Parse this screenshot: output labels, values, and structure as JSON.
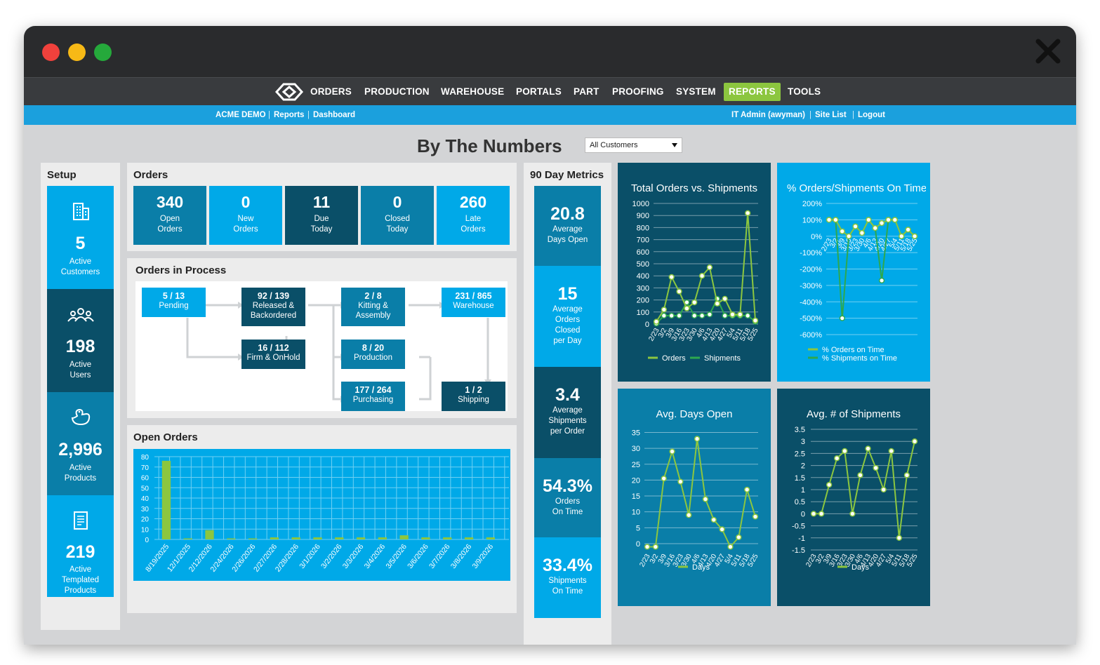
{
  "nav": {
    "items": [
      "ORDERS",
      "PRODUCTION",
      "WAREHOUSE",
      "PORTALS",
      "PART",
      "PROOFING",
      "SYSTEM",
      "REPORTS",
      "TOOLS"
    ],
    "active": "REPORTS",
    "active_color": "#8cc63f"
  },
  "subnav": {
    "company": "ACME DEMO",
    "reports": "Reports",
    "dashboard": "Dashboard",
    "user": "IT Admin (awyman)",
    "site_list": "Site List",
    "logout": "Logout",
    "separator": "|"
  },
  "page": {
    "title": "By The Numbers",
    "customer_filter": "All Customers"
  },
  "setup": {
    "title": "Setup",
    "tiles": [
      {
        "icon": "building-icon",
        "value": "5",
        "label1": "Active",
        "label2": "Customers",
        "label3": ""
      },
      {
        "icon": "users-icon",
        "value": "198",
        "label1": "Active",
        "label2": "Users",
        "label3": ""
      },
      {
        "icon": "duck-icon",
        "value": "2,996",
        "label1": "Active",
        "label2": "Products",
        "label3": ""
      },
      {
        "icon": "document-icon",
        "value": "219",
        "label1": "Active",
        "label2": "Templated",
        "label3": "Products"
      }
    ]
  },
  "orders": {
    "title": "Orders",
    "tiles": [
      {
        "value": "340",
        "label1": "Open",
        "label2": "Orders"
      },
      {
        "value": "0",
        "label1": "New",
        "label2": "Orders"
      },
      {
        "value": "11",
        "label1": "Due",
        "label2": "Today"
      },
      {
        "value": "0",
        "label1": "Closed",
        "label2": "Today"
      },
      {
        "value": "260",
        "label1": "Late",
        "label2": "Orders"
      }
    ]
  },
  "process": {
    "title": "Orders in Process",
    "pending": {
      "count": "5 / 13",
      "label": "Pending"
    },
    "released": {
      "count": "92 / 139",
      "label1": "Released &",
      "label2": "Backordered"
    },
    "firm": {
      "count": "16 / 112",
      "label": "Firm & OnHold"
    },
    "kitting": {
      "count": "2 / 8",
      "label1": "Kitting &",
      "label2": "Assembly"
    },
    "production": {
      "count": "8 / 20",
      "label": "Production"
    },
    "purchasing": {
      "count": "177 / 264",
      "label": "Purchasing"
    },
    "warehouse": {
      "count": "231 / 865",
      "label": "Warehouse"
    },
    "shipping": {
      "count": "1 / 2",
      "label": "Shipping"
    }
  },
  "metrics": {
    "title": "90 Day Metrics",
    "tiles": [
      {
        "value": "20.8",
        "label1": "Average",
        "label2": "Days Open",
        "label3": "",
        "label4": ""
      },
      {
        "value": "15",
        "label1": "Average",
        "label2": "Orders",
        "label3": "Closed",
        "label4": "per Day"
      },
      {
        "value": "3.4",
        "label1": "Average",
        "label2": "Shipments",
        "label3": "per Order",
        "label4": ""
      },
      {
        "value": "54.3%",
        "label1": "Orders",
        "label2": "On Time",
        "label3": "",
        "label4": ""
      },
      {
        "value": "33.4%",
        "label1": "Shipments",
        "label2": "On Time",
        "label3": "",
        "label4": ""
      }
    ]
  },
  "chart_data": [
    {
      "id": "open-orders",
      "title": "Open Orders",
      "type": "bar",
      "categories": [
        "8/19/2025",
        "12/1/2025",
        "2/12/2026",
        "2/24/2026",
        "2/26/2026",
        "2/27/2026",
        "2/28/2026",
        "3/1/2026",
        "3/2/2026",
        "3/3/2026",
        "3/4/2026",
        "3/5/2026",
        "3/6/2026",
        "3/7/2026",
        "3/8/2026",
        "3/9/2026"
      ],
      "values": [
        76,
        1,
        9,
        1,
        1,
        2,
        2,
        2,
        2,
        2,
        2,
        4,
        2,
        2,
        2,
        2
      ],
      "ylim": [
        0,
        80
      ],
      "yticks": [
        0,
        10,
        20,
        30,
        40,
        50,
        60,
        70,
        80
      ],
      "bar_color": "#8cc63f"
    },
    {
      "id": "orders-vs-shipments",
      "title": "Total Orders vs. Shipments",
      "type": "line",
      "x": [
        "2/23",
        "3/2",
        "3/9",
        "3/16",
        "3/23",
        "3/30",
        "4/6",
        "4/13",
        "4/20",
        "4/27",
        "5/4",
        "5/11",
        "5/18",
        "5/25"
      ],
      "series": [
        {
          "name": "Orders",
          "color": "#8cc63f",
          "values": [
            20,
            120,
            390,
            270,
            130,
            180,
            400,
            470,
            170,
            210,
            80,
            80,
            920,
            30
          ]
        },
        {
          "name": "Shipments",
          "color": "#2ea84e",
          "values": [
            5,
            70,
            70,
            70,
            180,
            70,
            70,
            80,
            210,
            70,
            70,
            70,
            70,
            20
          ]
        }
      ],
      "ylim": [
        0,
        1000
      ],
      "yticks": [
        0,
        100,
        200,
        300,
        400,
        500,
        600,
        700,
        800,
        900,
        1000
      ]
    },
    {
      "id": "on-time",
      "title": "% Orders/Shipments On Time",
      "type": "line",
      "x": [
        "2/23",
        "3/2",
        "3/9",
        "3/16",
        "3/23",
        "3/30",
        "4/6",
        "4/13",
        "4/20",
        "4/27",
        "5/4",
        "5/11",
        "5/18",
        "5/25"
      ],
      "series": [
        {
          "name": "% Orders on Time",
          "color": "#8cc63f",
          "values": [
            100,
            100,
            30,
            0,
            60,
            20,
            100,
            50,
            80,
            100,
            100,
            0,
            40,
            0
          ]
        },
        {
          "name": "% Shipments on Time",
          "color": "#2ea84e",
          "values": [
            100,
            100,
            -500,
            0,
            60,
            20,
            100,
            50,
            -270,
            100,
            100,
            0,
            40,
            0
          ]
        }
      ],
      "ylim": [
        -600,
        200
      ],
      "yticks": [
        -600,
        -500,
        -400,
        -300,
        -200,
        -100,
        0,
        100,
        200
      ],
      "ytick_suffix": "%"
    },
    {
      "id": "avg-days-open",
      "title": "Avg. Days Open",
      "type": "line",
      "x": [
        "2/23",
        "3/2",
        "3/9",
        "3/16",
        "3/23",
        "3/30",
        "4/6",
        "4/13",
        "4/20",
        "4/27",
        "5/4",
        "5/11",
        "5/18",
        "5/25"
      ],
      "series": [
        {
          "name": "Days",
          "color": "#8cc63f",
          "values": [
            -1,
            -1,
            20.5,
            29,
            19.5,
            9,
            33,
            14,
            7.5,
            4.5,
            -1,
            2,
            17,
            8.5
          ]
        }
      ],
      "ylim": [
        -2,
        36
      ],
      "yticks": [
        0,
        5,
        10,
        15,
        20,
        25,
        30,
        35
      ]
    },
    {
      "id": "avg-shipments",
      "title": "Avg. # of Shipments",
      "type": "line",
      "x": [
        "2/23",
        "3/2",
        "3/9",
        "3/16",
        "3/23",
        "3/30",
        "4/6",
        "4/13",
        "4/20",
        "4/27",
        "5/4",
        "5/11",
        "5/18",
        "5/25"
      ],
      "series": [
        {
          "name": "Days",
          "color": "#8cc63f",
          "values": [
            0,
            0,
            1.2,
            2.3,
            2.6,
            0,
            1.6,
            2.7,
            1.9,
            1,
            2.6,
            -1,
            1.6,
            3
          ]
        }
      ],
      "ylim": [
        -1.5,
        3.5
      ],
      "yticks": [
        -1.5,
        -1,
        -0.5,
        0,
        0.5,
        1,
        1.5,
        2,
        2.5,
        3,
        3.5
      ]
    }
  ]
}
